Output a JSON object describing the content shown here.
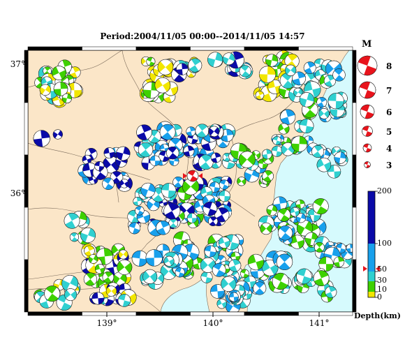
{
  "title": "Period:2004/11/05 00:00--2014/11/05 14:57",
  "axes": {
    "lat_labels": [
      "37°",
      "36°"
    ],
    "lon_labels": [
      "139°",
      "140°",
      "141°"
    ]
  },
  "magnitude_legend": {
    "title": "M",
    "labels": [
      "8",
      "7",
      "6",
      "5",
      "4",
      "3"
    ],
    "color": "#e8141c"
  },
  "depth_legend": {
    "unit": "Depth(km)",
    "tick_labels": [
      "200",
      "100",
      "50",
      "30",
      "10",
      "0"
    ],
    "colors": {
      "shallow_0_10": "#f2e600",
      "d10_30": "#3ed100",
      "d30_50": "#30d0d0",
      "d50_100": "#18a0ec",
      "d100_200": "#0a0aa8"
    },
    "marker_depth_km": 45
  },
  "colors": {
    "land": "#fbe6c8",
    "sea": "#d6fafd",
    "border": "#7a6a5a",
    "main_event": "#e8141c"
  },
  "main_event": {
    "lat": 36.12,
    "lon": 139.8,
    "depth_km": 45
  }
}
